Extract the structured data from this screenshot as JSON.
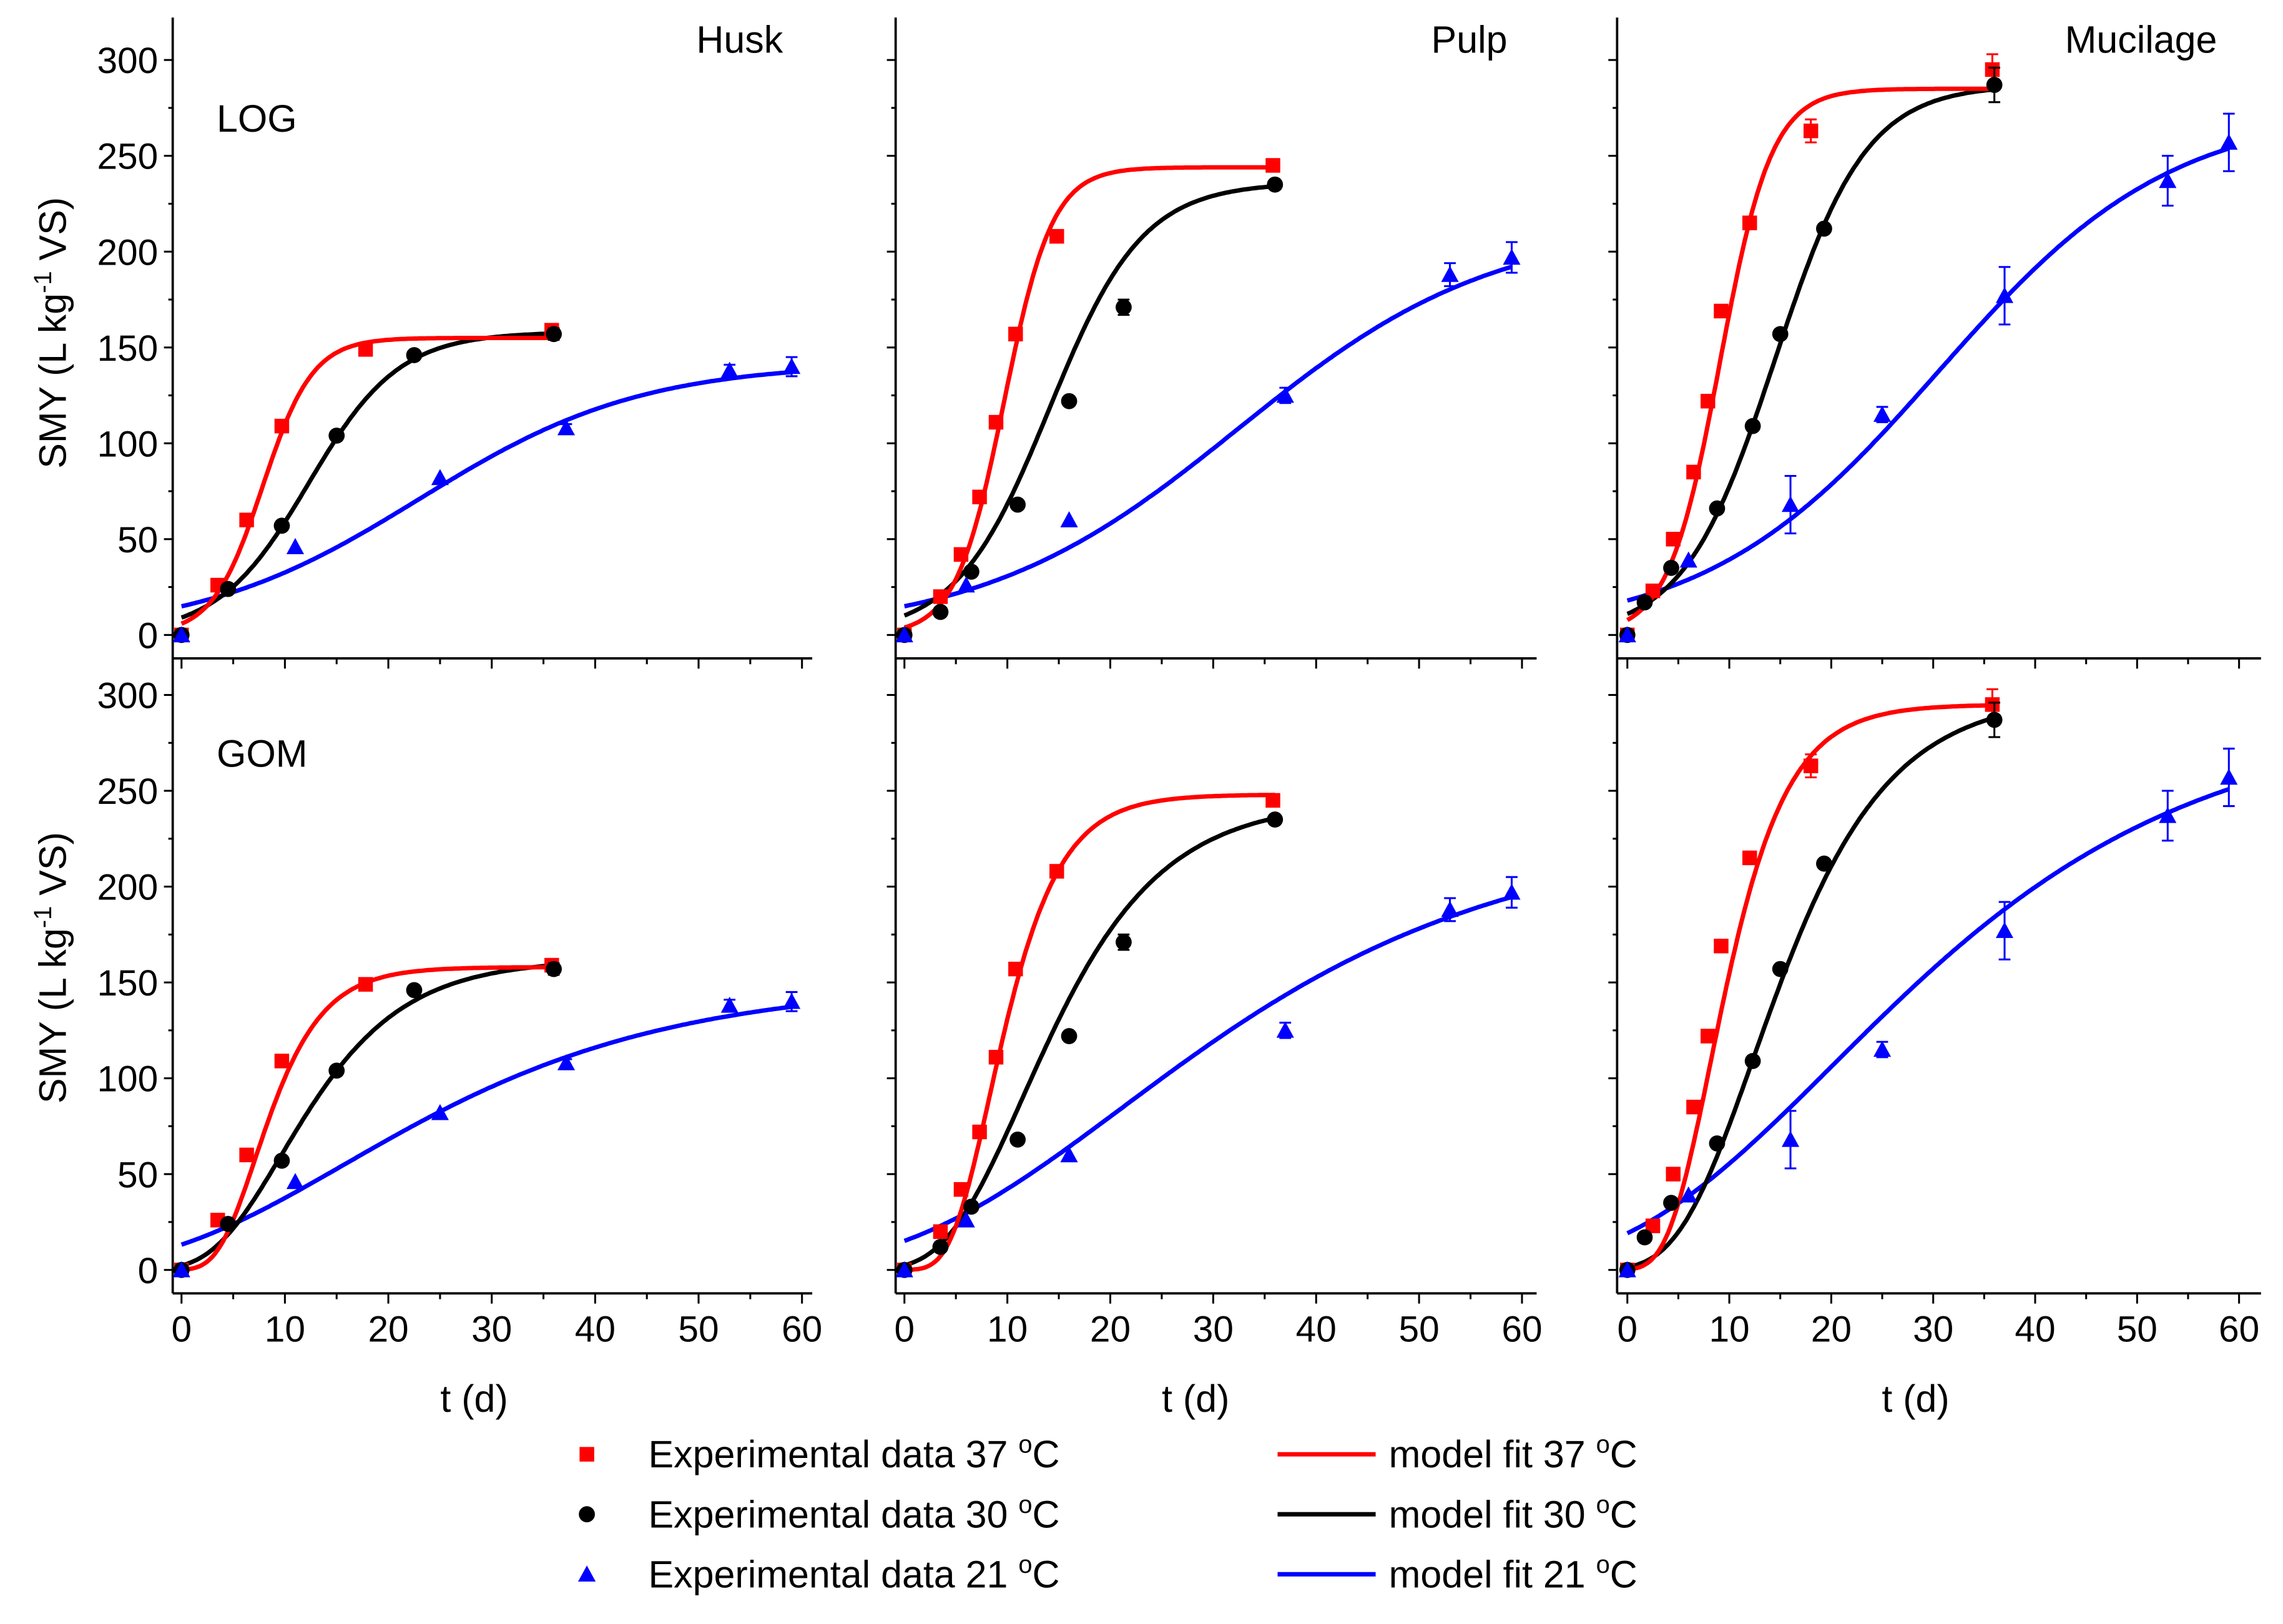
{
  "chart_data": {
    "type": "scatter",
    "ylabel": "SMY (L kg-1 VS)",
    "ylabel_parts": {
      "pre": "SMY (L kg",
      "sup": "-1",
      "post": " VS)"
    },
    "xlabel": "t (d)",
    "xlim": [
      -1,
      61
    ],
    "ylim": [
      -12,
      320
    ],
    "xticks": [
      0,
      10,
      20,
      30,
      40,
      50,
      60
    ],
    "yticks": [
      0,
      50,
      100,
      150,
      200,
      250,
      300
    ],
    "colors": {
      "37": "#ff0000",
      "30": "#000000",
      "21": "#0000ff"
    },
    "columns": [
      "Husk",
      "Pulp",
      "Mucilage"
    ],
    "rows": [
      "LOG",
      "GOM"
    ],
    "legend": {
      "placement": "bottom",
      "entries": [
        {
          "label": "Experimental data 37 ",
          "unit": "C",
          "sup": "o",
          "kind": "square",
          "series": "37"
        },
        {
          "label": "Experimental data 30 ",
          "unit": "C",
          "sup": "o",
          "kind": "circle",
          "series": "30"
        },
        {
          "label": "Experimental data 21 ",
          "unit": "C",
          "sup": "o",
          "kind": "triangle",
          "series": "21"
        },
        {
          "label": "model fit 37 ",
          "unit": "C",
          "sup": "o",
          "kind": "line",
          "series": "37"
        },
        {
          "label": "model fit 30 ",
          "unit": "C",
          "sup": "o",
          "kind": "line",
          "series": "30"
        },
        {
          "label": "model fit 21 ",
          "unit": "C",
          "sup": "o",
          "kind": "line",
          "series": "21"
        }
      ]
    },
    "experimental": {
      "Husk": {
        "37": [
          [
            0,
            0,
            0
          ],
          [
            3.5,
            26,
            0
          ],
          [
            6.3,
            60,
            0
          ],
          [
            9.7,
            109,
            0
          ],
          [
            17.8,
            149,
            0
          ],
          [
            35.8,
            159,
            2
          ]
        ],
        "30": [
          [
            0,
            0,
            0
          ],
          [
            4.5,
            24,
            0
          ],
          [
            9.7,
            57,
            0
          ],
          [
            15,
            104,
            0
          ],
          [
            22.5,
            146,
            0
          ],
          [
            36,
            157,
            3
          ]
        ],
        "21": [
          [
            0,
            0,
            0
          ],
          [
            11,
            46,
            0
          ],
          [
            25,
            82,
            0
          ],
          [
            37.2,
            108,
            2
          ],
          [
            53,
            138,
            3
          ],
          [
            59,
            140,
            5
          ]
        ]
      },
      "Pulp": {
        "37": [
          [
            0,
            0,
            0
          ],
          [
            3.5,
            20,
            0
          ],
          [
            5.5,
            42,
            0
          ],
          [
            7.3,
            72,
            0
          ],
          [
            8.9,
            111,
            0
          ],
          [
            10.8,
            157,
            0
          ],
          [
            14.8,
            208,
            0
          ],
          [
            35.8,
            245,
            0
          ]
        ],
        "30": [
          [
            0,
            0,
            0
          ],
          [
            3.5,
            12,
            0
          ],
          [
            6.5,
            33,
            0
          ],
          [
            11,
            68,
            0
          ],
          [
            16,
            122,
            0
          ],
          [
            21.3,
            171,
            4
          ],
          [
            36,
            235,
            0
          ]
        ],
        "21": [
          [
            0,
            0,
            0
          ],
          [
            6,
            26,
            0
          ],
          [
            16,
            60,
            0
          ],
          [
            37,
            125,
            4
          ],
          [
            53,
            188,
            6
          ],
          [
            59,
            197,
            8
          ]
        ]
      },
      "Mucilage": {
        "37": [
          [
            0,
            0,
            0
          ],
          [
            2.5,
            23,
            0
          ],
          [
            4.5,
            50,
            0
          ],
          [
            6.5,
            85,
            0
          ],
          [
            7.9,
            122,
            0
          ],
          [
            9.2,
            169,
            0
          ],
          [
            12,
            215,
            0
          ],
          [
            18,
            263,
            6
          ],
          [
            35.8,
            295,
            8
          ]
        ],
        "30": [
          [
            0,
            0,
            0
          ],
          [
            1.7,
            17,
            0
          ],
          [
            4.3,
            35,
            0
          ],
          [
            8.8,
            66,
            0
          ],
          [
            12.3,
            109,
            0
          ],
          [
            15,
            157,
            0
          ],
          [
            19.3,
            212,
            0
          ],
          [
            36,
            287,
            9
          ]
        ],
        "21": [
          [
            0,
            0,
            0
          ],
          [
            6,
            39,
            0
          ],
          [
            16,
            68,
            15
          ],
          [
            25,
            115,
            4
          ],
          [
            37,
            177,
            15
          ],
          [
            53,
            237,
            13
          ],
          [
            59,
            257,
            15
          ]
        ]
      }
    },
    "model_fits": {
      "LOG": {
        "Husk": {
          "37": {
            "P": 155,
            "Rm": 16,
            "lambda": 3,
            "tmax": 36
          },
          "30": {
            "P": 158,
            "Rm": 9,
            "lambda": 3.5,
            "tmax": 36
          },
          "21": {
            "P": 142,
            "Rm": 3.3,
            "lambda": 1.5,
            "tmax": 59
          }
        },
        "Pulp": {
          "37": {
            "P": 244,
            "Rm": 26,
            "lambda": 5,
            "tmax": 36
          },
          "30": {
            "P": 236,
            "Rm": 13,
            "lambda": 5,
            "tmax": 36
          },
          "21": {
            "P": 215,
            "Rm": 4.3,
            "lambda": 7.4,
            "tmax": 59
          }
        },
        "Mucilage": {
          "37": {
            "P": 285,
            "Rm": 28,
            "lambda": 4,
            "tmax": 36
          },
          "30": {
            "P": 287,
            "Rm": 16,
            "lambda": 5.5,
            "tmax": 36
          },
          "21": {
            "P": 275,
            "Rm": 6,
            "lambda": 7.6,
            "tmax": 59
          }
        }
      },
      "GOM": {
        "Husk": {
          "37": {
            "P": 158,
            "Rm": 16,
            "lambda": 3.5,
            "tmax": 36
          },
          "30": {
            "P": 162,
            "Rm": 9,
            "lambda": 3,
            "tmax": 36
          },
          "21": {
            "P": 150,
            "Rm": 3.1,
            "lambda": -2,
            "tmax": 59
          }
        },
        "Pulp": {
          "37": {
            "P": 248,
            "Rm": 24,
            "lambda": 4.5,
            "tmax": 36
          },
          "30": {
            "P": 245,
            "Rm": 12,
            "lambda": 4,
            "tmax": 36
          },
          "21": {
            "P": 230,
            "Rm": 4,
            "lambda": 0,
            "tmax": 59
          }
        },
        "Mucilage": {
          "37": {
            "P": 295,
            "Rm": 26,
            "lambda": 4,
            "tmax": 36
          },
          "30": {
            "P": 300,
            "Rm": 15,
            "lambda": 5,
            "tmax": 36
          },
          "21": {
            "P": 290,
            "Rm": 5.3,
            "lambda": 0,
            "tmax": 59
          }
        }
      }
    }
  }
}
